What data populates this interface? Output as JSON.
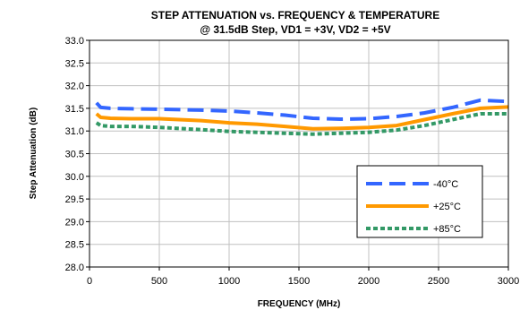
{
  "chart_data": {
    "type": "line",
    "title": "STEP ATTENUATION vs. FREQUENCY & TEMPERATURE",
    "subtitle": "@ 31.5dB Step, VD1 = +3V, VD2 = +5V",
    "xlabel": "FREQUENCY (MHz)",
    "ylabel": "Step Attenuation (dB)",
    "xlim": [
      0,
      3000
    ],
    "ylim": [
      28.0,
      33.0
    ],
    "xticks": [
      "0",
      "500",
      "1000",
      "1500",
      "2000",
      "2500",
      "3000"
    ],
    "yticks": [
      "28.0",
      "28.5",
      "29.0",
      "29.5",
      "30.0",
      "30.5",
      "31.0",
      "31.5",
      "32.0",
      "32.5",
      "33.0"
    ],
    "grid": true,
    "legend_position": "bottom-right",
    "series": [
      {
        "name": "-40°C",
        "color": "#3366ff",
        "dash": "long-dash",
        "x": [
          50,
          80,
          150,
          300,
          500,
          800,
          1000,
          1200,
          1400,
          1600,
          1800,
          2000,
          2200,
          2400,
          2600,
          2800,
          3000
        ],
        "y": [
          31.62,
          31.52,
          31.5,
          31.49,
          31.48,
          31.46,
          31.44,
          31.4,
          31.35,
          31.28,
          31.26,
          31.27,
          31.32,
          31.4,
          31.52,
          31.68,
          31.65
        ]
      },
      {
        "name": "+25°C",
        "color": "#ff9900",
        "dash": "solid",
        "x": [
          50,
          80,
          150,
          300,
          500,
          800,
          1000,
          1200,
          1400,
          1600,
          1800,
          2000,
          2200,
          2400,
          2600,
          2800,
          3000
        ],
        "y": [
          31.38,
          31.3,
          31.28,
          31.27,
          31.27,
          31.23,
          31.18,
          31.15,
          31.1,
          31.05,
          31.06,
          31.08,
          31.12,
          31.25,
          31.38,
          31.5,
          31.53
        ]
      },
      {
        "name": "+85°C",
        "color": "#339966",
        "dash": "short-dash",
        "x": [
          50,
          80,
          150,
          300,
          500,
          800,
          1000,
          1200,
          1400,
          1600,
          1800,
          2000,
          2200,
          2400,
          2600,
          2800,
          3000
        ],
        "y": [
          31.18,
          31.12,
          31.1,
          31.1,
          31.08,
          31.03,
          30.99,
          30.97,
          30.95,
          30.93,
          30.95,
          30.97,
          31.02,
          31.12,
          31.25,
          31.38,
          31.38
        ]
      }
    ]
  }
}
